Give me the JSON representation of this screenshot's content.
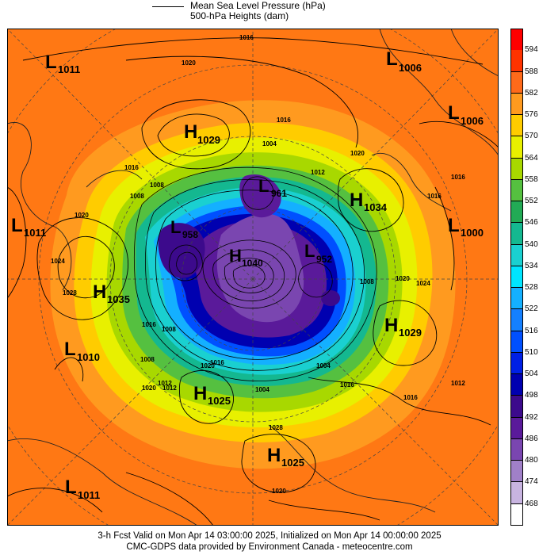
{
  "legend": {
    "mslp_label": "Mean Sea Level Pressure (hPa)",
    "heights_label": "500-hPa Heights (dam)"
  },
  "colorbar": {
    "ticks": [
      "594",
      "588",
      "582",
      "576",
      "570",
      "564",
      "558",
      "552",
      "546",
      "540",
      "534",
      "528",
      "522",
      "516",
      "510",
      "504",
      "498",
      "492",
      "486",
      "480",
      "474",
      "468"
    ],
    "colors": [
      "#ff0000",
      "#ff3300",
      "#ff6a1a",
      "#ff9a1f",
      "#ffcc00",
      "#e8f000",
      "#a8d800",
      "#55c040",
      "#22aa55",
      "#14b890",
      "#1ad0d0",
      "#00e5ff",
      "#14b0ff",
      "#1480ff",
      "#0050ff",
      "#0020e6",
      "#0000b0",
      "#3c0a8c",
      "#5a1a9a",
      "#7a46b0",
      "#a080c8",
      "#c8b4e0",
      "#ffffff"
    ]
  },
  "systems": [
    {
      "letter": "L",
      "value": "1011"
    },
    {
      "letter": "L",
      "value": "1006"
    },
    {
      "letter": "H",
      "value": "1029"
    },
    {
      "letter": "L",
      "value": "1006"
    },
    {
      "letter": "L",
      "value": "961"
    },
    {
      "letter": "H",
      "value": "1034"
    },
    {
      "letter": "L",
      "value": "1011"
    },
    {
      "letter": "L",
      "value": "1000"
    },
    {
      "letter": "L",
      "value": "958"
    },
    {
      "letter": "H",
      "value": "1040"
    },
    {
      "letter": "L",
      "value": "952"
    },
    {
      "letter": "H",
      "value": "1035"
    },
    {
      "letter": "H",
      "value": "1029"
    },
    {
      "letter": "L",
      "value": "1010"
    },
    {
      "letter": "H",
      "value": "1025"
    },
    {
      "letter": "H",
      "value": "1025"
    },
    {
      "letter": "L",
      "value": "1011"
    }
  ],
  "isobar_labels": [
    "1016",
    "1020",
    "1016",
    "1004",
    "1020",
    "1008",
    "1016",
    "1012",
    "1008",
    "1016",
    "1020",
    "1024",
    "1028",
    "1016",
    "1008",
    "1004",
    "1008",
    "1020",
    "1024",
    "1012",
    "1016",
    "1008",
    "1012",
    "1004",
    "1016",
    "1016",
    "1020",
    "1012",
    "1020",
    "1028",
    "1020",
    "1016"
  ],
  "footer": {
    "line1": "3-h Fcst Valid on Mon Apr 14 03:00:00 2025, Initialized on Mon Apr 14 00:00:00 2025",
    "line2": "CMC-GDPS data provided by Environment Canada - meteocentre.com"
  }
}
